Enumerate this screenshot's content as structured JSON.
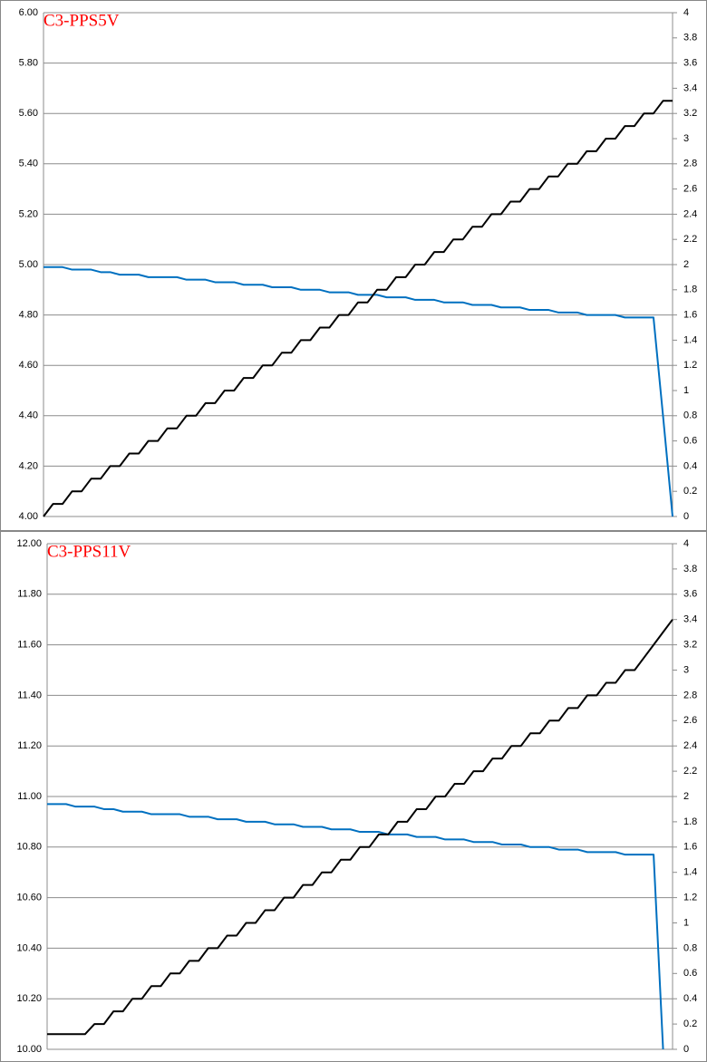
{
  "chart_data": [
    {
      "type": "line",
      "title": "C3-PPS5V",
      "ylim": [
        4,
        6
      ],
      "yticks": [
        {
          "value": 4,
          "label": "4.00"
        },
        {
          "value": 4.2,
          "label": "4.20"
        },
        {
          "value": 4.4,
          "label": "4.40"
        },
        {
          "value": 4.6,
          "label": "4.60"
        },
        {
          "value": 4.8,
          "label": "4.80"
        },
        {
          "value": 5,
          "label": "5.00"
        },
        {
          "value": 5.2,
          "label": "5.20"
        },
        {
          "value": 5.4,
          "label": "5.40"
        },
        {
          "value": 5.6,
          "label": "5.60"
        },
        {
          "value": 5.8,
          "label": "5.80"
        },
        {
          "value": 6,
          "label": "6.00"
        }
      ],
      "y2lim": [
        0,
        4
      ],
      "y2ticks": [
        0,
        0.2,
        0.4,
        0.6,
        0.8,
        1,
        1.2,
        1.4,
        1.6,
        1.8,
        2,
        2.2,
        2.4,
        2.6,
        2.8,
        3,
        3.2,
        3.4,
        3.6,
        3.8,
        4
      ],
      "grid": true,
      "series": [
        {
          "color": "#0070c0",
          "values": [
            4.99,
            4.99,
            4.99,
            4.98,
            4.98,
            4.98,
            4.97,
            4.97,
            4.96,
            4.96,
            4.96,
            4.95,
            4.95,
            4.95,
            4.95,
            4.94,
            4.94,
            4.94,
            4.93,
            4.93,
            4.93,
            4.92,
            4.92,
            4.92,
            4.91,
            4.91,
            4.91,
            4.9,
            4.9,
            4.9,
            4.89,
            4.89,
            4.89,
            4.88,
            4.88,
            4.88,
            4.87,
            4.87,
            4.87,
            4.86,
            4.86,
            4.86,
            4.85,
            4.85,
            4.85,
            4.84,
            4.84,
            4.84,
            4.83,
            4.83,
            4.83,
            4.82,
            4.82,
            4.82,
            4.81,
            4.81,
            4.81,
            4.8,
            4.8,
            4.8,
            4.8,
            4.79,
            4.79,
            4.79,
            4.79,
            4.4,
            4.0
          ]
        },
        {
          "color": "#000000",
          "axis": "y2",
          "values": [
            0,
            0.1,
            0.1,
            0.2,
            0.2,
            0.3,
            0.3,
            0.4,
            0.4,
            0.5,
            0.5,
            0.6,
            0.6,
            0.7,
            0.7,
            0.8,
            0.8,
            0.9,
            0.9,
            1.0,
            1.0,
            1.1,
            1.1,
            1.2,
            1.2,
            1.3,
            1.3,
            1.4,
            1.4,
            1.5,
            1.5,
            1.6,
            1.6,
            1.7,
            1.7,
            1.8,
            1.8,
            1.9,
            1.9,
            2.0,
            2.0,
            2.1,
            2.1,
            2.2,
            2.2,
            2.3,
            2.3,
            2.4,
            2.4,
            2.5,
            2.5,
            2.6,
            2.6,
            2.7,
            2.7,
            2.8,
            2.8,
            2.9,
            2.9,
            3.0,
            3.0,
            3.1,
            3.1,
            3.2,
            3.2,
            3.3,
            3.3
          ]
        }
      ]
    },
    {
      "type": "line",
      "title": "C3-PPS11V",
      "ylim": [
        10,
        12
      ],
      "yticks": [
        {
          "value": 10,
          "label": "10.00"
        },
        {
          "value": 10.2,
          "label": "10.20"
        },
        {
          "value": 10.4,
          "label": "10.40"
        },
        {
          "value": 10.6,
          "label": "10.60"
        },
        {
          "value": 10.8,
          "label": "10.80"
        },
        {
          "value": 11,
          "label": "11.00"
        },
        {
          "value": 11.2,
          "label": "11.20"
        },
        {
          "value": 11.4,
          "label": "11.40"
        },
        {
          "value": 11.6,
          "label": "11.60"
        },
        {
          "value": 11.8,
          "label": "11.80"
        },
        {
          "value": 12,
          "label": "12.00"
        }
      ],
      "y2lim": [
        0,
        4
      ],
      "y2ticks": [
        0,
        0.2,
        0.4,
        0.6,
        0.8,
        1,
        1.2,
        1.4,
        1.6,
        1.8,
        2,
        2.2,
        2.4,
        2.6,
        2.8,
        3,
        3.2,
        3.4,
        3.6,
        3.8,
        4
      ],
      "grid": true,
      "series": [
        {
          "color": "#0070c0",
          "values": [
            10.97,
            10.97,
            10.97,
            10.96,
            10.96,
            10.96,
            10.95,
            10.95,
            10.94,
            10.94,
            10.94,
            10.93,
            10.93,
            10.93,
            10.93,
            10.92,
            10.92,
            10.92,
            10.91,
            10.91,
            10.91,
            10.9,
            10.9,
            10.9,
            10.89,
            10.89,
            10.89,
            10.88,
            10.88,
            10.88,
            10.87,
            10.87,
            10.87,
            10.86,
            10.86,
            10.86,
            10.85,
            10.85,
            10.85,
            10.84,
            10.84,
            10.84,
            10.83,
            10.83,
            10.83,
            10.82,
            10.82,
            10.82,
            10.81,
            10.81,
            10.81,
            10.8,
            10.8,
            10.8,
            10.79,
            10.79,
            10.79,
            10.78,
            10.78,
            10.78,
            10.78,
            10.77,
            10.77,
            10.77,
            10.77,
            10.0,
            null
          ]
        },
        {
          "color": "#000000",
          "axis": "y2",
          "values": [
            0.12,
            0.12,
            0.12,
            0.12,
            0.12,
            0.2,
            0.2,
            0.3,
            0.3,
            0.4,
            0.4,
            0.5,
            0.5,
            0.6,
            0.6,
            0.7,
            0.7,
            0.8,
            0.8,
            0.9,
            0.9,
            1.0,
            1.0,
            1.1,
            1.1,
            1.2,
            1.2,
            1.3,
            1.3,
            1.4,
            1.4,
            1.5,
            1.5,
            1.6,
            1.6,
            1.7,
            1.7,
            1.8,
            1.8,
            1.9,
            1.9,
            2.0,
            2.0,
            2.1,
            2.1,
            2.2,
            2.2,
            2.3,
            2.3,
            2.4,
            2.4,
            2.5,
            2.5,
            2.6,
            2.6,
            2.7,
            2.7,
            2.8,
            2.8,
            2.9,
            2.9,
            3.0,
            3.0,
            3.1,
            3.2,
            3.3,
            3.4
          ]
        }
      ]
    }
  ]
}
